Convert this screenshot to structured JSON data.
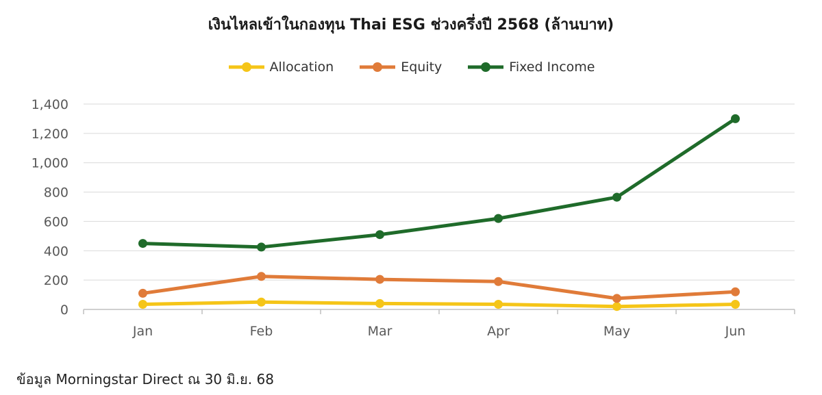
{
  "chart_data": {
    "type": "line",
    "title": "เงินไหลเข้าในกองทุน Thai ESG ช่วงครึ่งปี 2568 (ล้านบาท)",
    "categories": [
      "Jan",
      "Feb",
      "Mar",
      "Apr",
      "May",
      "Jun"
    ],
    "series": [
      {
        "name": "Allocation",
        "color": "#F5C518",
        "values": [
          35,
          50,
          40,
          35,
          20,
          35
        ]
      },
      {
        "name": "Equity",
        "color": "#E07B39",
        "values": [
          110,
          225,
          205,
          190,
          75,
          120
        ]
      },
      {
        "name": "Fixed Income",
        "color": "#1F6B2A",
        "values": [
          450,
          425,
          510,
          620,
          765,
          1300
        ]
      }
    ],
    "ylim": [
      0,
      1400
    ],
    "yticks": [
      "0",
      "200",
      "400",
      "600",
      "800",
      "1,000",
      "1,200",
      "1,400"
    ],
    "ytick_values": [
      0,
      200,
      400,
      600,
      800,
      1000,
      1200,
      1400
    ],
    "grid": true,
    "legend_position": "top-center",
    "xlabel": "",
    "ylabel": ""
  },
  "footer": {
    "source": "ข้อมูล Morningstar Direct ณ 30 มิ.ย. 68"
  }
}
